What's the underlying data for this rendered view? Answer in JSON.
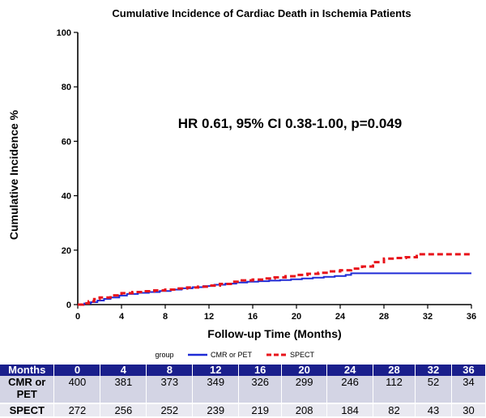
{
  "chart_data": {
    "type": "line",
    "title": "Cumulative Incidence of Cardiac Death in Ischemia Patients",
    "xlabel": "Follow-up Time (Months)",
    "ylabel": "Cumulative Incidence %",
    "xlim": [
      0,
      36
    ],
    "ylim": [
      0,
      100
    ],
    "xticks": [
      0,
      4,
      8,
      12,
      16,
      20,
      24,
      28,
      32,
      36
    ],
    "yticks": [
      0,
      20,
      40,
      60,
      80,
      100
    ],
    "annotation": "HR 0.61, 95% CI 0.38-1.00, p=0.049",
    "legend": {
      "title": "group",
      "placement": "bottom"
    },
    "series": [
      {
        "name": "CMR or PET",
        "color": "#1f2bd6",
        "style": "solid",
        "x": [
          0,
          0.6,
          1.2,
          1.8,
          2.4,
          3.0,
          3.8,
          4.5,
          5.5,
          6.5,
          7.5,
          8.5,
          9.5,
          10.5,
          11.5,
          12.5,
          13.5,
          14.5,
          15.5,
          16.5,
          17.5,
          18.5,
          19.5,
          20.5,
          21.5,
          22.5,
          23.5,
          24.5,
          25.0,
          36
        ],
        "y": [
          0,
          0.4,
          0.9,
          1.5,
          2.1,
          2.6,
          3.3,
          3.9,
          4.3,
          4.6,
          5.0,
          5.5,
          6.0,
          6.4,
          6.8,
          7.3,
          7.7,
          8.1,
          8.4,
          8.6,
          8.8,
          9.0,
          9.3,
          9.6,
          9.9,
          10.2,
          10.5,
          10.9,
          11.5,
          11.5
        ]
      },
      {
        "name": "SPECT",
        "color": "#e8141b",
        "style": "dashed",
        "x": [
          0,
          0.5,
          1.0,
          1.5,
          2.0,
          3.0,
          4.0,
          5.0,
          6.0,
          7.0,
          8.0,
          9.0,
          10.0,
          11.0,
          12.0,
          13.0,
          14.0,
          15.0,
          16.0,
          17.0,
          18.0,
          19.0,
          20.0,
          21.0,
          22.0,
          23.0,
          24.0,
          25.0,
          26.0,
          27.0,
          28.0,
          29.0,
          30.0,
          31.0,
          36
        ],
        "y": [
          0,
          0.5,
          1.2,
          2.0,
          2.6,
          3.4,
          4.2,
          4.6,
          4.9,
          5.2,
          5.5,
          5.9,
          6.3,
          6.6,
          7.0,
          7.6,
          8.4,
          8.9,
          9.2,
          9.6,
          10.0,
          10.4,
          10.9,
          11.3,
          11.7,
          12.2,
          12.6,
          13.2,
          14.0,
          15.6,
          16.9,
          17.1,
          17.4,
          18.5,
          18.5
        ]
      }
    ]
  },
  "risk_table": {
    "header_label": "Months",
    "months": [
      "0",
      "4",
      "8",
      "12",
      "16",
      "20",
      "24",
      "28",
      "32",
      "36"
    ],
    "rows": [
      {
        "label": "CMR or PET",
        "values": [
          "400",
          "381",
          "373",
          "349",
          "326",
          "299",
          "246",
          "112",
          "52",
          "34"
        ]
      },
      {
        "label": "SPECT",
        "values": [
          "272",
          "256",
          "252",
          "239",
          "219",
          "208",
          "184",
          "82",
          "43",
          "30"
        ]
      }
    ]
  }
}
